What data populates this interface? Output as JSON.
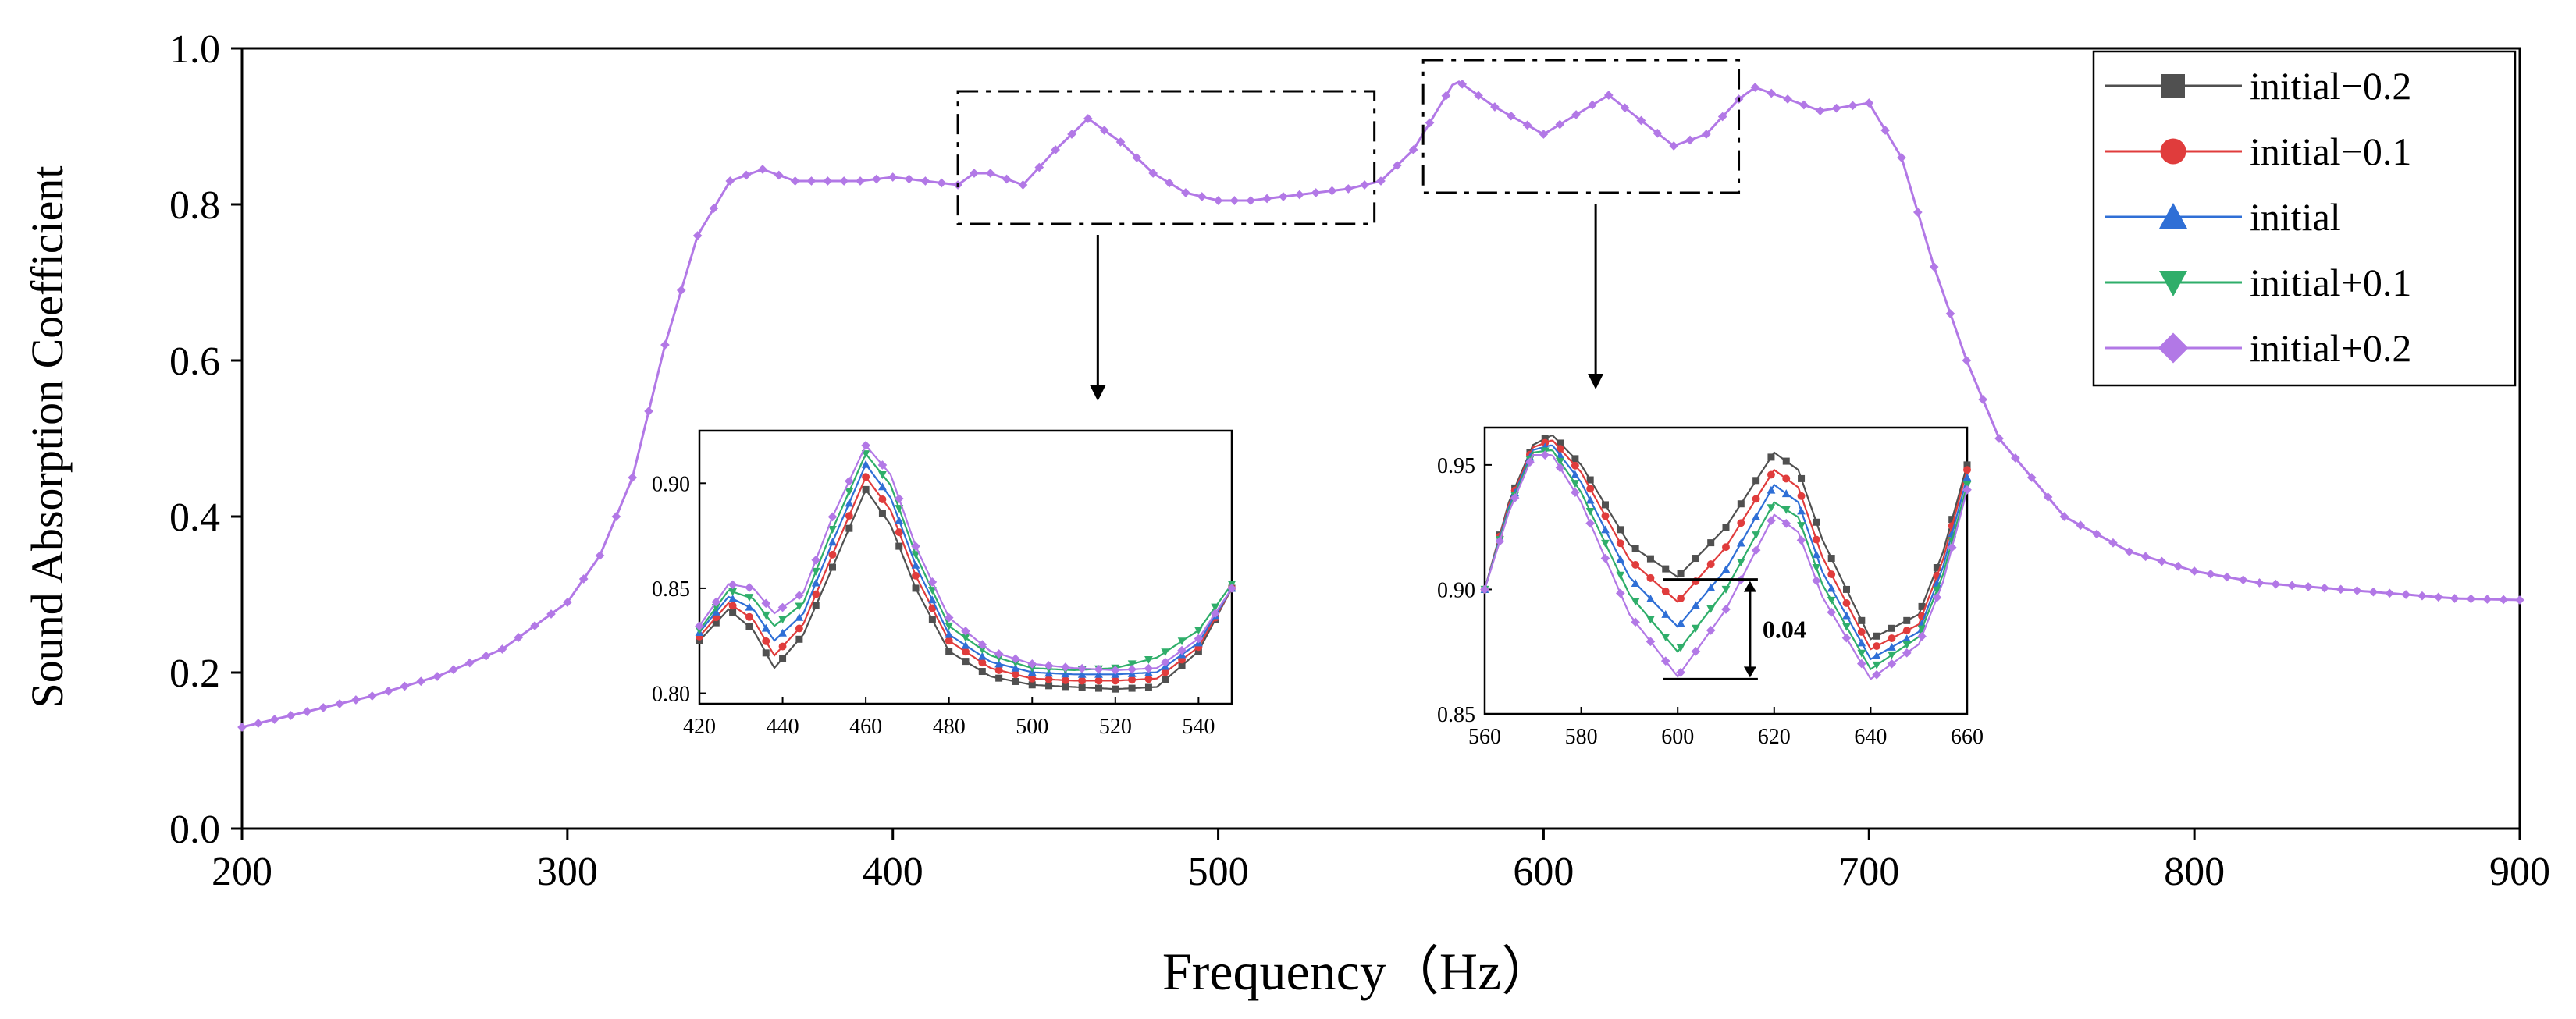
{
  "chart_data": {
    "type": "line",
    "title": "",
    "xlabel": "Frequency（Hz）",
    "ylabel": "Sound Absorption Coefficient",
    "xlim": [
      200,
      900
    ],
    "ylim": [
      0.0,
      1.0
    ],
    "xticks": [
      "200",
      "300",
      "400",
      "500",
      "600",
      "700",
      "800",
      "900"
    ],
    "yticks": [
      "0.0",
      "0.2",
      "0.4",
      "0.6",
      "0.8",
      "1.0"
    ],
    "legend_position": "top-right",
    "series": [
      {
        "name": "initial−0.2",
        "color": "#505050",
        "marker": "square"
      },
      {
        "name": "initial−0.1",
        "color": "#e03c3c",
        "marker": "circle"
      },
      {
        "name": "initial",
        "color": "#2f6fd6",
        "marker": "triangle-up"
      },
      {
        "name": "initial+0.1",
        "color": "#2fae6a",
        "marker": "triangle-down"
      },
      {
        "name": "initial+0.2",
        "color": "#b278e6",
        "marker": "diamond"
      }
    ],
    "main_curve": {
      "x": [
        200,
        220,
        240,
        260,
        280,
        300,
        310,
        320,
        330,
        340,
        350,
        360,
        370,
        380,
        390,
        400,
        410,
        420,
        425,
        430,
        440,
        450,
        460,
        470,
        480,
        490,
        500,
        510,
        520,
        530,
        540,
        550,
        560,
        573,
        585,
        600,
        620,
        640,
        650,
        660,
        665,
        675,
        685,
        700,
        710,
        720,
        730,
        740,
        760,
        780,
        800,
        820,
        850,
        880,
        900
      ],
      "y": [
        0.13,
        0.15,
        0.17,
        0.195,
        0.23,
        0.29,
        0.35,
        0.45,
        0.62,
        0.76,
        0.83,
        0.845,
        0.83,
        0.83,
        0.83,
        0.835,
        0.83,
        0.825,
        0.84,
        0.84,
        0.825,
        0.87,
        0.91,
        0.88,
        0.84,
        0.815,
        0.805,
        0.805,
        0.81,
        0.815,
        0.82,
        0.83,
        0.87,
        0.96,
        0.925,
        0.89,
        0.94,
        0.875,
        0.89,
        0.935,
        0.95,
        0.935,
        0.92,
        0.93,
        0.86,
        0.72,
        0.6,
        0.5,
        0.4,
        0.355,
        0.33,
        0.315,
        0.305,
        0.295,
        0.293
      ]
    },
    "insets": [
      {
        "xlim": [
          420,
          548
        ],
        "ylim": [
          0.795,
          0.925
        ],
        "xticks": [
          "420",
          "440",
          "460",
          "480",
          "500",
          "520",
          "540"
        ],
        "yticks": [
          "0.80",
          "0.85",
          "0.90"
        ],
        "series": [
          {
            "x": [
              420,
              427,
              433,
              438,
              445,
              452,
              460,
              466,
              472,
              480,
              490,
              500,
              510,
              520,
              530,
              540,
              548
            ],
            "y": [
              0.825,
              0.84,
              0.83,
              0.812,
              0.828,
              0.86,
              0.897,
              0.88,
              0.85,
              0.82,
              0.808,
              0.804,
              0.803,
              0.802,
              0.803,
              0.82,
              0.85
            ]
          },
          {
            "x": [
              420,
              427,
              433,
              438,
              445,
              452,
              460,
              466,
              472,
              480,
              490,
              500,
              510,
              520,
              530,
              540,
              548
            ],
            "y": [
              0.827,
              0.843,
              0.835,
              0.818,
              0.833,
              0.866,
              0.903,
              0.887,
              0.856,
              0.825,
              0.812,
              0.807,
              0.806,
              0.806,
              0.807,
              0.822,
              0.85
            ]
          },
          {
            "x": [
              420,
              427,
              433,
              438,
              445,
              452,
              460,
              466,
              472,
              480,
              490,
              500,
              510,
              520,
              530,
              540,
              548
            ],
            "y": [
              0.829,
              0.846,
              0.84,
              0.825,
              0.838,
              0.872,
              0.909,
              0.893,
              0.861,
              0.828,
              0.815,
              0.81,
              0.809,
              0.809,
              0.81,
              0.824,
              0.85
            ]
          },
          {
            "x": [
              420,
              427,
              433,
              438,
              445,
              452,
              460,
              466,
              472,
              480,
              490,
              500,
              510,
              520,
              530,
              540,
              548
            ],
            "y": [
              0.83,
              0.849,
              0.845,
              0.832,
              0.843,
              0.878,
              0.914,
              0.899,
              0.866,
              0.832,
              0.818,
              0.812,
              0.811,
              0.812,
              0.817,
              0.83,
              0.852
            ]
          },
          {
            "x": [
              420,
              427,
              433,
              438,
              445,
              452,
              460,
              466,
              472,
              480,
              490,
              500,
              510,
              520,
              530,
              540,
              548
            ],
            "y": [
              0.832,
              0.852,
              0.85,
              0.838,
              0.848,
              0.884,
              0.918,
              0.904,
              0.87,
              0.836,
              0.82,
              0.814,
              0.812,
              0.811,
              0.812,
              0.826,
              0.85
            ]
          }
        ]
      },
      {
        "xlim": [
          560,
          660
        ],
        "ylim": [
          0.85,
          0.965
        ],
        "xticks": [
          "560",
          "580",
          "600",
          "620",
          "640",
          "660"
        ],
        "yticks": [
          "0.85",
          "0.90",
          "0.95"
        ],
        "annotation": "0.04",
        "annotation_range": {
          "x": 615,
          "y_top": 0.904,
          "y_bottom": 0.864
        },
        "series": [
          {
            "x": [
              560,
              565,
              570,
              574,
              580,
              590,
              600,
              610,
              620,
              625,
              630,
              640,
              650,
              655,
              660
            ],
            "y": [
              0.9,
              0.935,
              0.958,
              0.962,
              0.95,
              0.918,
              0.905,
              0.925,
              0.955,
              0.948,
              0.92,
              0.88,
              0.89,
              0.915,
              0.95
            ]
          },
          {
            "x": [
              560,
              565,
              570,
              574,
              580,
              590,
              600,
              610,
              620,
              625,
              630,
              640,
              650,
              655,
              660
            ],
            "y": [
              0.9,
              0.934,
              0.957,
              0.96,
              0.947,
              0.912,
              0.895,
              0.917,
              0.948,
              0.941,
              0.913,
              0.876,
              0.886,
              0.912,
              0.948
            ]
          },
          {
            "x": [
              560,
              565,
              570,
              574,
              580,
              590,
              600,
              610,
              620,
              625,
              630,
              640,
              650,
              655,
              660
            ],
            "y": [
              0.9,
              0.933,
              0.956,
              0.958,
              0.943,
              0.905,
              0.885,
              0.908,
              0.942,
              0.935,
              0.907,
              0.872,
              0.883,
              0.909,
              0.945
            ]
          },
          {
            "x": [
              560,
              565,
              570,
              574,
              580,
              590,
              600,
              610,
              620,
              625,
              630,
              640,
              650,
              655,
              660
            ],
            "y": [
              0.9,
              0.932,
              0.955,
              0.956,
              0.939,
              0.898,
              0.875,
              0.9,
              0.935,
              0.929,
              0.902,
              0.868,
              0.881,
              0.906,
              0.942
            ]
          },
          {
            "x": [
              560,
              565,
              570,
              574,
              580,
              590,
              600,
              610,
              620,
              625,
              630,
              640,
              650,
              655,
              660
            ],
            "y": [
              0.9,
              0.931,
              0.954,
              0.954,
              0.935,
              0.89,
              0.865,
              0.892,
              0.93,
              0.923,
              0.897,
              0.864,
              0.878,
              0.903,
              0.94
            ]
          }
        ]
      }
    ]
  }
}
